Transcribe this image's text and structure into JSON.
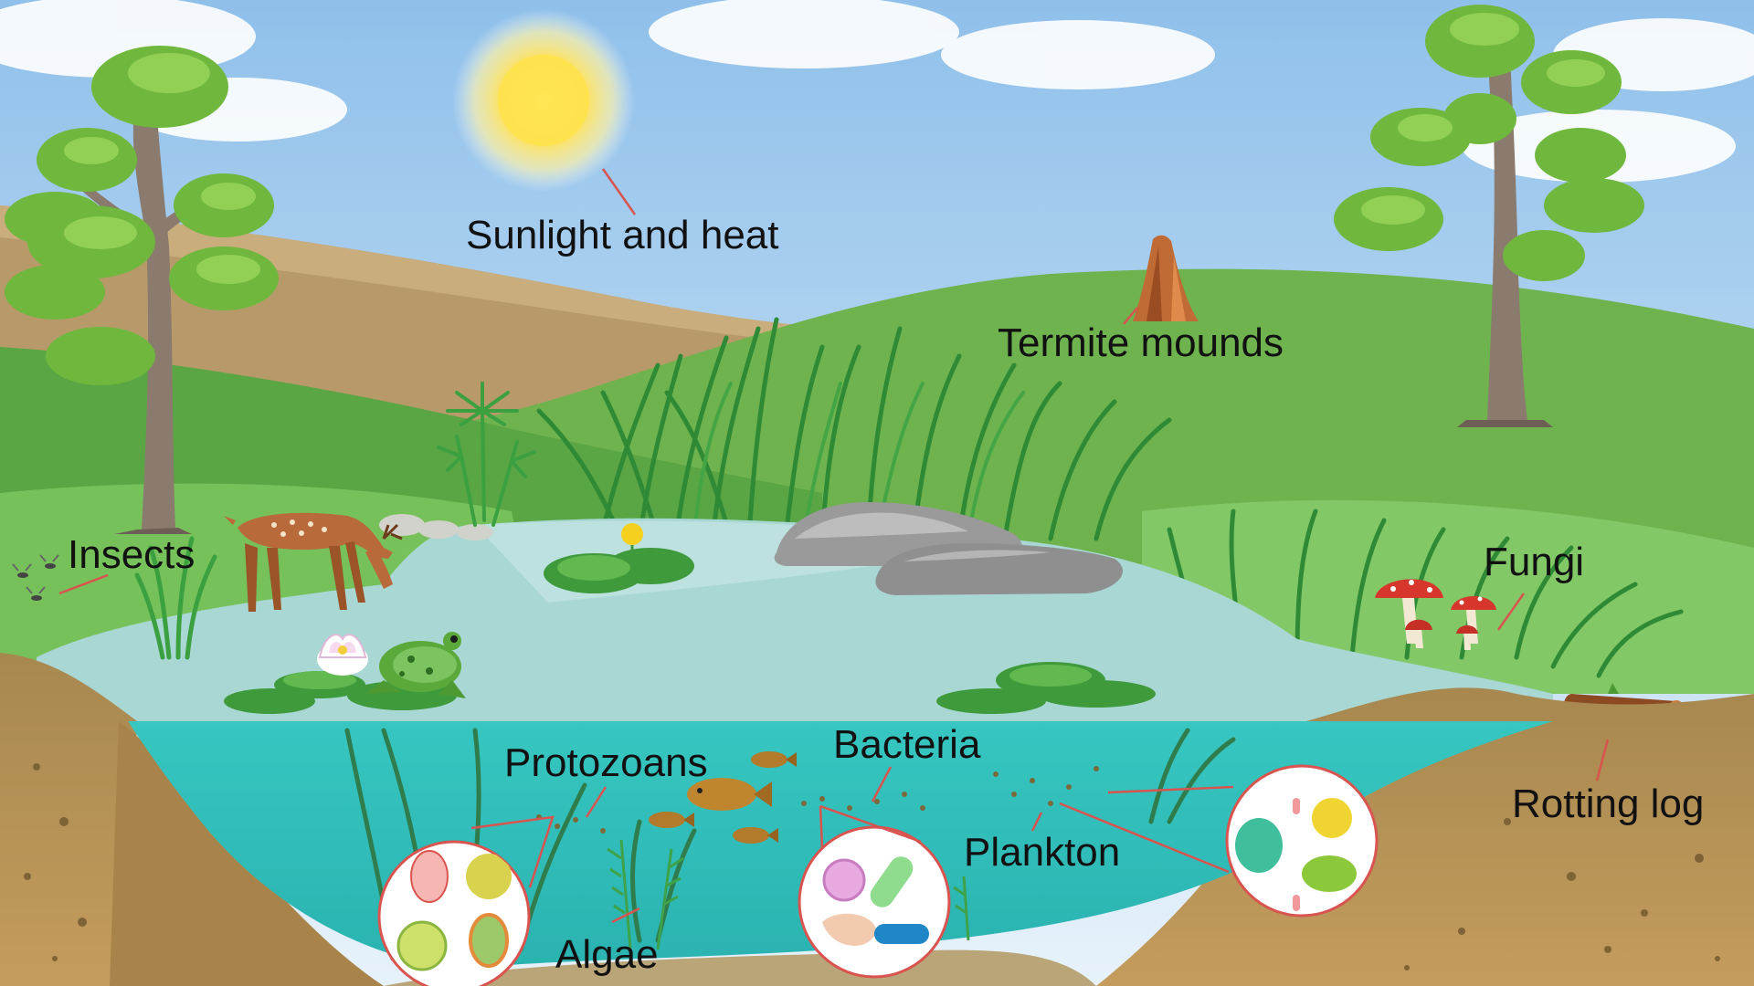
{
  "labels": {
    "sunlight": "Sunlight and heat",
    "termite": "Termite mounds",
    "insects": "Insects",
    "fungi": "Fungi",
    "rotting_log": "Rotting log",
    "protozoans": "Protozoans",
    "bacteria": "Bacteria",
    "plankton": "Plankton",
    "algae": "Algae"
  },
  "colors": {
    "sky_top": "#a9cdee",
    "sky_bottom": "#e6f1fb",
    "hill_brown": "#b89a6a",
    "grass_dark": "#3f9a3c",
    "grass_light": "#7cc462",
    "pond_surface": "#a9d8d6",
    "pond_water": "#3cc4c0",
    "soil": "#b08a4e",
    "sun": "#fde36a",
    "leader": "#d9534f"
  },
  "icons": {
    "sun": "sun-icon",
    "tree": "tree-icon",
    "deer": "deer-icon",
    "frog": "frog-icon",
    "fish": "fish-icon",
    "mushroom": "mushroom-icon",
    "log": "log-icon",
    "rock": "rock-icon",
    "lily": "water-lily-icon",
    "termite_mound": "termite-mound-icon"
  }
}
